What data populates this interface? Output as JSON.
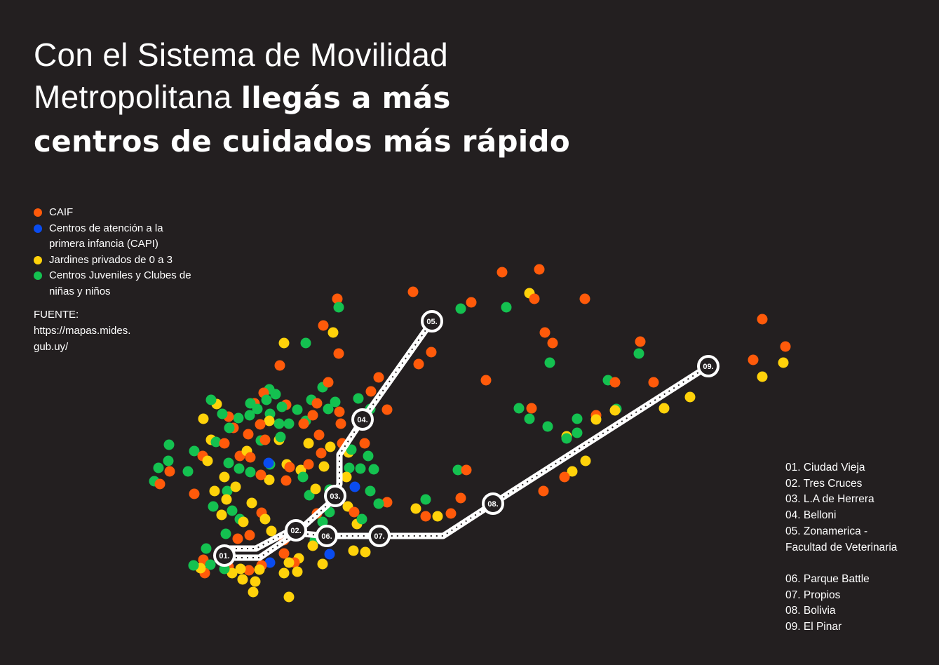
{
  "title": {
    "part1": "Con el Sistema de Movilidad",
    "part2": "Metropolitana ",
    "bold1": "llegás a más",
    "bold2": "centros de cuidados más rápido"
  },
  "colors": {
    "background": "#231f20",
    "caif": "#ff5a0a",
    "capi": "#0a4cf0",
    "jardines": "#ffd20a",
    "juveniles": "#14c150",
    "route": "#ffffff"
  },
  "legend": [
    {
      "key": "caif",
      "lines": [
        "CAIF"
      ]
    },
    {
      "key": "capi",
      "lines": [
        "Centros de atención a la",
        "primera infancia (CAPI)"
      ]
    },
    {
      "key": "jardines",
      "lines": [
        "Jardines privados de 0 a 3"
      ]
    },
    {
      "key": "juveniles",
      "lines": [
        "Centros Juveniles y Clubes de",
        "niñas y niños"
      ]
    }
  ],
  "source": {
    "label": "FUENTE:",
    "lines": [
      "https://mapas.mides.",
      "gub.uy/"
    ]
  },
  "stations": [
    {
      "id": "01.",
      "name": "01. Ciudad Vieja"
    },
    {
      "id": "02.",
      "name": "02. Tres Cruces"
    },
    {
      "id": "03.",
      "name": "03. L.A de Herrera"
    },
    {
      "id": "04.",
      "name": "04. Belloni"
    },
    {
      "id": "05.",
      "name": "05. Zonamerica -",
      "name2": "Facultad de Veterinaria"
    },
    {
      "id": "06.",
      "name": "06. Parque Battle"
    },
    {
      "id": "07.",
      "name": "07. Propios"
    },
    {
      "id": "08.",
      "name": "08. Bolivia"
    },
    {
      "id": "09.",
      "name": "09. El Pinar"
    }
  ]
}
